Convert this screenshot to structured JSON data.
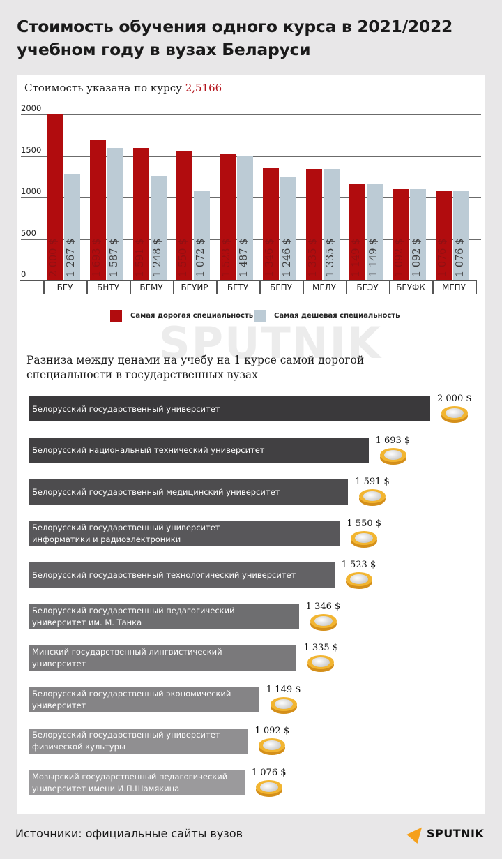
{
  "header": {
    "title_line1": "Стоимость обучения одного курса в 2021/2022",
    "title_line2": "учебном году в вузах Беларуси"
  },
  "chart1": {
    "subtitle_prefix": "Стоимость указана по курсу ",
    "exchange_rate": "2,5166",
    "y_ticks": [
      "2000",
      "1500",
      "1000",
      "500",
      "0"
    ],
    "legend": {
      "expensive": "Самая дорогая специальность",
      "cheap": "Самая дешевая специальность"
    },
    "colors": {
      "expensive": "#b10c0e",
      "cheap": "#bccbd5"
    }
  },
  "chart_data": [
    {
      "type": "bar",
      "title": "Стоимость обучения одного курса в 2021/2022 учебном году в вузах Беларуси",
      "subtitle": "Стоимость указана по курсу 2,5166",
      "xlabel": "",
      "ylabel": "",
      "ylim": [
        0,
        2000
      ],
      "y_ticks": [
        0,
        500,
        1000,
        1500,
        2000
      ],
      "grid": true,
      "legend_position": "bottom",
      "categories": [
        "БГУ",
        "БНТУ",
        "БГМУ",
        "БГУИР",
        "БГТУ",
        "БГПУ",
        "МГЛУ",
        "БГЭУ",
        "БГУФК",
        "МГПУ"
      ],
      "series": [
        {
          "name": "Самая дорогая специальность",
          "color": "#b10c0e",
          "values": [
            2000,
            1693,
            1591,
            1550,
            1523,
            1346,
            1335,
            1149,
            1092,
            1076
          ],
          "labels": [
            "2 000 $",
            "1 693 $",
            "1 591 $",
            "1 550 $",
            "1 523 $",
            "1 346 $",
            "1 335 $",
            "1 149 $",
            "1 092 $",
            "1 076 $"
          ]
        },
        {
          "name": "Самая дешевая специальность",
          "color": "#bccbd5",
          "values": [
            1267,
            1587,
            1248,
            1072,
            1487,
            1246,
            1335,
            1149,
            1092,
            1076
          ],
          "labels": [
            "1 267 $",
            "1 587 $",
            "1 248 $",
            "1 072 $",
            "1 487 $",
            "1 246 $",
            "1 335 $",
            "1 149 $",
            "1 092 $",
            "1 076 $"
          ]
        }
      ]
    },
    {
      "type": "bar",
      "orientation": "horizontal",
      "title": "Разниза между ценами на учебу на 1 курсе самой дорогой специальности в государственных вузах",
      "categories": [
        "Белорусский государственный университет",
        "Белорусский национальный технический университет",
        "Белорусский государственный медицинский университет",
        "Белорусский государственный университет информатики и радиоэлектроники",
        "Белорусский государственный технологический университет",
        "Белорусский государственный педагогический университет им. М. Танка",
        "Минский государственный лингвистический университет",
        "Белорусский государственный экономический университет",
        "Белорусский государственный университет физической культуры",
        "Мозырский государственный педагогический университет имени И.П.Шамякина"
      ],
      "values": [
        2000,
        1693,
        1591,
        1550,
        1523,
        1346,
        1335,
        1149,
        1092,
        1076
      ],
      "value_labels": [
        "2 000 $",
        "1 693 $",
        "1 591 $",
        "1 550 $",
        "1 523 $",
        "1 346 $",
        "1 335 $",
        "1 149 $",
        "1 092 $",
        "1 076 $"
      ]
    }
  ],
  "chart2": {
    "title": "Разниза между ценами на учебу на 1 курсе самой дорогой специальности в государственных вузах",
    "rows": [
      {
        "line1": "Белорусский государственный университет",
        "line2": "",
        "value": "2 000 $",
        "color": "#3a393b"
      },
      {
        "line1": "Белорусский национальный технический университет",
        "line2": "",
        "value": "1 693 $",
        "color": "#414042"
      },
      {
        "line1": "Белорусский государственный медицинский университет",
        "line2": "",
        "value": "1 591 $",
        "color": "#4d4c4e"
      },
      {
        "line1": "Белорусский государственный университет",
        "line2": "информатики и радиоэлектроники",
        "value": "1 550 $",
        "color": "#58575a"
      },
      {
        "line1": "Белорусский государственный технологический университет",
        "line2": "",
        "value": "1 523 $",
        "color": "#636265"
      },
      {
        "line1": "Белорусский государственный педагогический",
        "line2": "университет им. М. Танка",
        "value": "1 346 $",
        "color": "#6e6e70"
      },
      {
        "line1": "Минский государственный лингвистический",
        "line2": "университет",
        "value": "1 335 $",
        "color": "#7a797b"
      },
      {
        "line1": "Белорусский государственный экономический",
        "line2": "университет",
        "value": "1 149 $",
        "color": "#858486"
      },
      {
        "line1": "Белорусский государственный университет",
        "line2": "физической культуры",
        "value": "1 092 $",
        "color": "#908f91"
      },
      {
        "line1": "Мозырский государственный педагогический",
        "line2": "университет имени И.П.Шамякина",
        "value": "1 076 $",
        "color": "#9b9a9c"
      }
    ]
  },
  "footer": {
    "source": "Источники: официальные сайты вузов",
    "logo": "SPUTNIK",
    "watermark": "SPUTNIK"
  }
}
